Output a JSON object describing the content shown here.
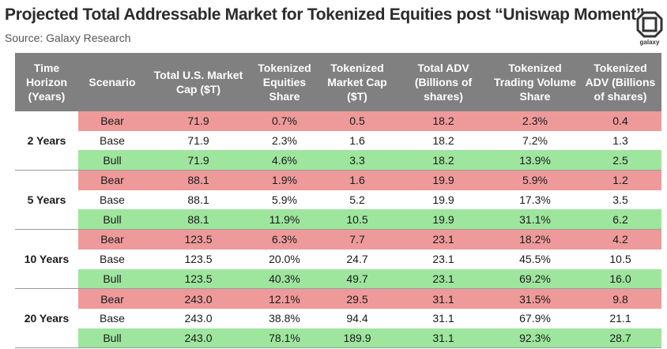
{
  "title": "Projected Total Addressable Market for Tokenized Equities post “Uniswap Moment”",
  "source": "Source: Galaxy Research",
  "logo_text": "galaxy",
  "colors": {
    "header": "#808080",
    "bear": "#ee9a9a",
    "base": "#ffffff",
    "bull": "#9ee59e"
  },
  "chart_data": {
    "type": "table",
    "columns": [
      "Time Horizon (Years)",
      "Scenario",
      "Total U.S. Market Cap ($T)",
      "Tokenized Equities Share",
      "Tokenized Market Cap ($T)",
      "Total ADV (Billions of shares)",
      "Tokenized Trading Volume Share",
      "Tokenized ADV (Billions of shares)"
    ],
    "groups": [
      {
        "horizon": "2 Years",
        "rows": [
          {
            "scenario": "Bear",
            "cells": [
              "71.9",
              "0.7%",
              "0.5",
              "18.2",
              "2.3%",
              "0.4"
            ]
          },
          {
            "scenario": "Base",
            "cells": [
              "71.9",
              "2.3%",
              "1.6",
              "18.2",
              "7.2%",
              "1.3"
            ]
          },
          {
            "scenario": "Bull",
            "cells": [
              "71.9",
              "4.6%",
              "3.3",
              "18.2",
              "13.9%",
              "2.5"
            ]
          }
        ]
      },
      {
        "horizon": "5 Years",
        "rows": [
          {
            "scenario": "Bear",
            "cells": [
              "88.1",
              "1.9%",
              "1.6",
              "19.9",
              "5.9%",
              "1.2"
            ]
          },
          {
            "scenario": "Base",
            "cells": [
              "88.1",
              "5.9%",
              "5.2",
              "19.9",
              "17.3%",
              "3.5"
            ]
          },
          {
            "scenario": "Bull",
            "cells": [
              "88.1",
              "11.9%",
              "10.5",
              "19.9",
              "31.1%",
              "6.2"
            ]
          }
        ]
      },
      {
        "horizon": "10 Years",
        "rows": [
          {
            "scenario": "Bear",
            "cells": [
              "123.5",
              "6.3%",
              "7.7",
              "23.1",
              "18.2%",
              "4.2"
            ]
          },
          {
            "scenario": "Base",
            "cells": [
              "123.5",
              "20.0%",
              "24.7",
              "23.1",
              "45.5%",
              "10.5"
            ]
          },
          {
            "scenario": "Bull",
            "cells": [
              "123.5",
              "40.3%",
              "49.7",
              "23.1",
              "69.2%",
              "16.0"
            ]
          }
        ]
      },
      {
        "horizon": "20 Years",
        "rows": [
          {
            "scenario": "Bear",
            "cells": [
              "243.0",
              "12.1%",
              "29.5",
              "31.1",
              "31.5%",
              "9.8"
            ]
          },
          {
            "scenario": "Base",
            "cells": [
              "243.0",
              "38.8%",
              "94.4",
              "31.1",
              "67.9%",
              "21.1"
            ]
          },
          {
            "scenario": "Bull",
            "cells": [
              "243.0",
              "78.1%",
              "189.9",
              "31.1",
              "92.3%",
              "28.7"
            ]
          }
        ]
      }
    ]
  }
}
